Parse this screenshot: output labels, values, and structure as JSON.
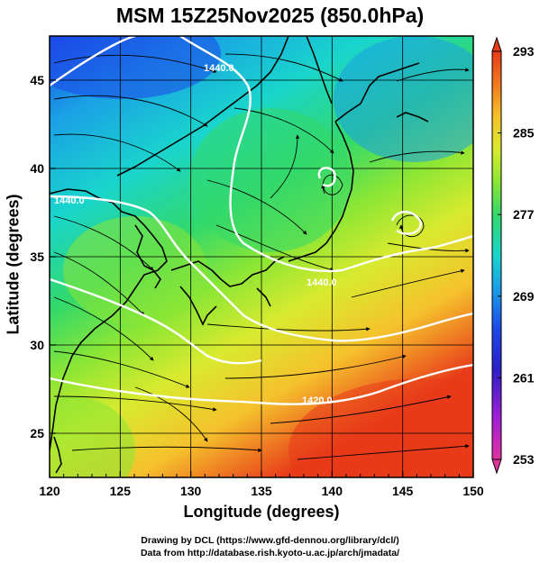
{
  "title": "MSM 15Z25Nov2025 (850.0hPa)",
  "x_axis": {
    "label": "Longitude (degrees)",
    "min": 120,
    "max": 150,
    "ticks": [
      "120",
      "125",
      "130",
      "135",
      "140",
      "145",
      "150"
    ]
  },
  "y_axis": {
    "label": "Latitude  (degrees)",
    "min": 22.5,
    "max": 47.5,
    "ticks": [
      "25",
      "30",
      "35",
      "40",
      "45"
    ]
  },
  "colorbar": {
    "min": 253,
    "max": 293,
    "ticks": [
      "293",
      "285",
      "277",
      "269",
      "261",
      "253"
    ],
    "colors": [
      "#e0339e",
      "#a21fd6",
      "#2b1fc8",
      "#1c49e8",
      "#1aa0e6",
      "#19d5cc",
      "#33d96a",
      "#8be635",
      "#d9ea2e",
      "#f5c12c",
      "#f07a1e",
      "#e83b1a"
    ]
  },
  "contours": {
    "labels": [
      "1440.0",
      "1440.0",
      "1440.0",
      "1420.0"
    ]
  },
  "credits": {
    "line1": "Drawing by DCL (https://www.gfd-dennou.org/library/dcl/)",
    "line2": "Data from http://database.rish.kyoto-u.ac.jp/arch/jmadata/"
  }
}
